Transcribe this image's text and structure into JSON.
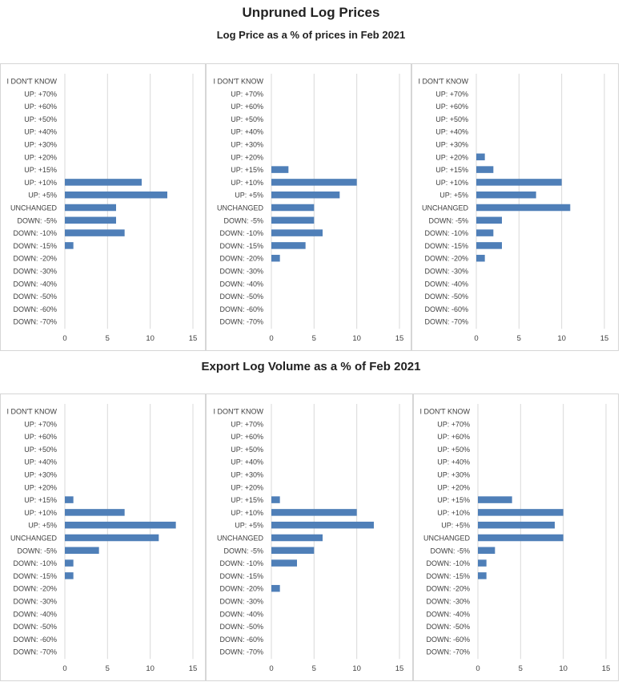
{
  "titles": {
    "main": "Unpruned Log Prices",
    "subtitle": "Log Price as a % of prices in Feb 2021",
    "section2": "Export Log Volume as a % of Feb 2021"
  },
  "colors": {
    "bar": "#4f7fb8",
    "grid": "#d9d9d9"
  },
  "chart_data": [
    {
      "type": "bar",
      "orientation": "horizontal",
      "group": "Log Price",
      "categories": [
        "I DON'T KNOW",
        "UP: +70%",
        "UP: +60%",
        "UP: +50%",
        "UP: +40%",
        "UP: +30%",
        "UP: +20%",
        "UP: +15%",
        "UP: +10%",
        "UP: +5%",
        "UNCHANGED",
        "DOWN: -5%",
        "DOWN: -10%",
        "DOWN: -15%",
        "DOWN: -20%",
        "DOWN: -30%",
        "DOWN: -40%",
        "DOWN: -50%",
        "DOWN: -60%",
        "DOWN: -70%"
      ],
      "values": [
        0,
        0,
        0,
        0,
        0,
        0,
        0,
        0,
        9,
        12,
        6,
        6,
        7,
        1,
        0,
        0,
        0,
        0,
        0,
        0
      ],
      "xlim": [
        0,
        15
      ],
      "xticks": [
        0,
        5,
        10,
        15
      ],
      "grid": true
    },
    {
      "type": "bar",
      "orientation": "horizontal",
      "group": "Log Price",
      "categories": [
        "I DON'T KNOW",
        "UP: +70%",
        "UP: +60%",
        "UP: +50%",
        "UP: +40%",
        "UP: +30%",
        "UP: +20%",
        "UP: +15%",
        "UP: +10%",
        "UP: +5%",
        "UNCHANGED",
        "DOWN: -5%",
        "DOWN: -10%",
        "DOWN: -15%",
        "DOWN: -20%",
        "DOWN: -30%",
        "DOWN: -40%",
        "DOWN: -50%",
        "DOWN: -60%",
        "DOWN: -70%"
      ],
      "values": [
        0,
        0,
        0,
        0,
        0,
        0,
        0,
        2,
        10,
        8,
        5,
        5,
        6,
        4,
        1,
        0,
        0,
        0,
        0,
        0
      ],
      "xlim": [
        0,
        15
      ],
      "xticks": [
        0,
        5,
        10,
        15
      ],
      "grid": true
    },
    {
      "type": "bar",
      "orientation": "horizontal",
      "group": "Log Price",
      "categories": [
        "I DON'T KNOW",
        "UP: +70%",
        "UP: +60%",
        "UP: +50%",
        "UP: +40%",
        "UP: +30%",
        "UP: +20%",
        "UP: +15%",
        "UP: +10%",
        "UP: +5%",
        "UNCHANGED",
        "DOWN: -5%",
        "DOWN: -10%",
        "DOWN: -15%",
        "DOWN: -20%",
        "DOWN: -30%",
        "DOWN: -40%",
        "DOWN: -50%",
        "DOWN: -60%",
        "DOWN: -70%"
      ],
      "values": [
        0,
        0,
        0,
        0,
        0,
        0,
        1,
        2,
        10,
        7,
        11,
        3,
        2,
        3,
        1,
        0,
        0,
        0,
        0,
        0
      ],
      "xlim": [
        0,
        15
      ],
      "xticks": [
        0,
        5,
        10,
        15
      ],
      "grid": true
    },
    {
      "type": "bar",
      "orientation": "horizontal",
      "group": "Export Log Volume",
      "categories": [
        "I DON'T KNOW",
        "UP: +70%",
        "UP: +60%",
        "UP: +50%",
        "UP: +40%",
        "UP: +30%",
        "UP: +20%",
        "UP: +15%",
        "UP: +10%",
        "UP: +5%",
        "UNCHANGED",
        "DOWN: -5%",
        "DOWN: -10%",
        "DOWN: -15%",
        "DOWN: -20%",
        "DOWN: -30%",
        "DOWN: -40%",
        "DOWN: -50%",
        "DOWN: -60%",
        "DOWN: -70%"
      ],
      "values": [
        0,
        0,
        0,
        0,
        0,
        0,
        0,
        1,
        7,
        13,
        11,
        4,
        1,
        1,
        0,
        0,
        0,
        0,
        0,
        0
      ],
      "xlim": [
        0,
        15
      ],
      "xticks": [
        0,
        5,
        10,
        15
      ],
      "grid": true
    },
    {
      "type": "bar",
      "orientation": "horizontal",
      "group": "Export Log Volume",
      "categories": [
        "I DON'T KNOW",
        "UP: +70%",
        "UP: +60%",
        "UP: +50%",
        "UP: +40%",
        "UP: +30%",
        "UP: +20%",
        "UP: +15%",
        "UP: +10%",
        "UP: +5%",
        "UNCHANGED",
        "DOWN: -5%",
        "DOWN: -10%",
        "DOWN: -15%",
        "DOWN: -20%",
        "DOWN: -30%",
        "DOWN: -40%",
        "DOWN: -50%",
        "DOWN: -60%",
        "DOWN: -70%"
      ],
      "values": [
        0,
        0,
        0,
        0,
        0,
        0,
        0,
        1,
        10,
        12,
        6,
        5,
        3,
        0,
        1,
        0,
        0,
        0,
        0,
        0
      ],
      "xlim": [
        0,
        15
      ],
      "xticks": [
        0,
        5,
        10,
        15
      ],
      "grid": true
    },
    {
      "type": "bar",
      "orientation": "horizontal",
      "group": "Export Log Volume",
      "categories": [
        "I DON'T KNOW",
        "UP: +70%",
        "UP: +60%",
        "UP: +50%",
        "UP: +40%",
        "UP: +30%",
        "UP: +20%",
        "UP: +15%",
        "UP: +10%",
        "UP: +5%",
        "UNCHANGED",
        "DOWN: -5%",
        "DOWN: -10%",
        "DOWN: -15%",
        "DOWN: -20%",
        "DOWN: -30%",
        "DOWN: -40%",
        "DOWN: -50%",
        "DOWN: -60%",
        "DOWN: -70%"
      ],
      "values": [
        0,
        0,
        0,
        0,
        0,
        0,
        0,
        4,
        10,
        9,
        10,
        2,
        1,
        1,
        0,
        0,
        0,
        0,
        0,
        0
      ],
      "xlim": [
        0,
        15
      ],
      "xticks": [
        0,
        5,
        10,
        15
      ],
      "grid": true
    }
  ]
}
